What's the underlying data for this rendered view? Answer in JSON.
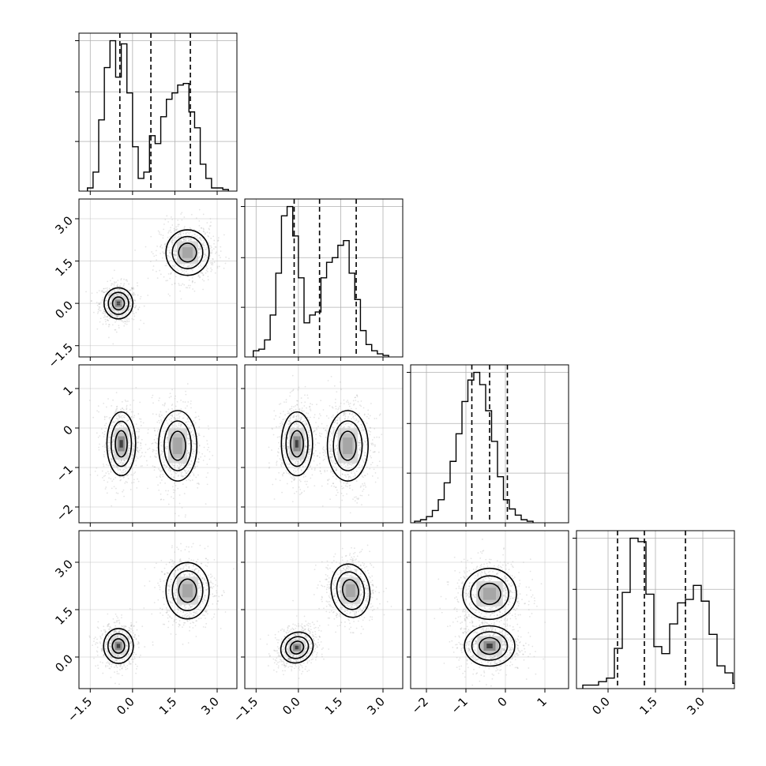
{
  "chart_data": {
    "type": "corner",
    "grid": true,
    "parameters": [
      {
        "ticks": [
          -1.5,
          0.0,
          1.5,
          3.0
        ],
        "tick_labels": [
          "−1.5",
          "0.0",
          "1.5",
          "3.0"
        ],
        "range": [
          -1.9,
          3.7
        ]
      },
      {
        "ticks": [
          -1.5,
          0.0,
          1.5,
          3.0
        ],
        "tick_labels": [
          "−1.5",
          "0.0",
          "1.5",
          "3.0"
        ],
        "range": [
          -1.9,
          3.7
        ]
      },
      {
        "ticks": [
          -2,
          -1,
          0,
          1
        ],
        "tick_labels": [
          "−2",
          "−1",
          "0",
          "1"
        ],
        "range": [
          -2.4,
          1.6
        ]
      },
      {
        "ticks": [
          0.0,
          1.5,
          3.0
        ],
        "tick_labels": [
          "0.0",
          "1.5",
          "3.0"
        ],
        "range": [
          -1.0,
          4.0
        ]
      }
    ],
    "histograms": [
      {
        "param": 0,
        "quantiles": [
          -0.45,
          0.65,
          2.05
        ],
        "bin_start": -1.6,
        "bin_width": 0.2,
        "counts": [
          0.02,
          0.12,
          0.45,
          0.78,
          0.95,
          0.72,
          0.93,
          0.62,
          0.28,
          0.08,
          0.12,
          0.35,
          0.3,
          0.47,
          0.58,
          0.62,
          0.67,
          0.68,
          0.5,
          0.4,
          0.17,
          0.08,
          0.02,
          0.02,
          0.01
        ]
      },
      {
        "param": 1,
        "quantiles": [
          -0.15,
          0.75,
          2.05
        ],
        "bin_start": -1.6,
        "bin_width": 0.2,
        "counts": [
          0.04,
          0.05,
          0.11,
          0.27,
          0.54,
          0.91,
          0.97,
          0.78,
          0.51,
          0.22,
          0.27,
          0.29,
          0.51,
          0.61,
          0.64,
          0.72,
          0.75,
          0.54,
          0.37,
          0.17,
          0.08,
          0.04,
          0.02,
          0.01
        ]
      },
      {
        "param": 2,
        "quantiles": [
          -0.85,
          -0.4,
          0.05
        ],
        "bin_start": -2.3,
        "bin_width": 0.15,
        "counts": [
          0.01,
          0.02,
          0.04,
          0.08,
          0.15,
          0.26,
          0.4,
          0.58,
          0.79,
          0.93,
          0.98,
          0.9,
          0.73,
          0.53,
          0.3,
          0.15,
          0.09,
          0.05,
          0.02,
          0.01
        ]
      },
      {
        "param": 3,
        "quantiles": [
          0.3,
          1.15,
          2.45
        ],
        "bin_start": -0.8,
        "bin_width": 0.25,
        "counts": [
          0.02,
          0.02,
          0.04,
          0.06,
          0.23,
          0.55,
          0.86,
          0.84,
          0.54,
          0.24,
          0.2,
          0.37,
          0.49,
          0.51,
          0.59,
          0.5,
          0.31,
          0.13,
          0.09,
          0.03,
          0.02
        ]
      }
    ],
    "pairs": [
      {
        "x": 0,
        "y": 1,
        "clusters": [
          {
            "cx": -0.5,
            "cy": 0.0,
            "rx": 0.6,
            "ry": 0.65,
            "rot": 0,
            "tilt": 0
          },
          {
            "cx": 1.95,
            "cy": 1.8,
            "rx": 0.9,
            "ry": 0.95,
            "rot": 0,
            "tilt": 0
          }
        ]
      },
      {
        "x": 0,
        "y": 2,
        "clusters": [
          {
            "cx": -0.4,
            "cy": -0.4,
            "rx": 0.6,
            "ry": 0.95,
            "rot": 0,
            "tilt": 0
          },
          {
            "cx": 1.6,
            "cy": -0.45,
            "rx": 0.8,
            "ry": 1.05,
            "rot": 0,
            "tilt": 0
          }
        ]
      },
      {
        "x": 1,
        "y": 2,
        "clusters": [
          {
            "cx": -0.05,
            "cy": -0.4,
            "rx": 0.65,
            "ry": 0.95,
            "rot": 0,
            "tilt": 0
          },
          {
            "cx": 1.75,
            "cy": -0.45,
            "rx": 0.85,
            "ry": 1.05,
            "rot": 0,
            "tilt": 0
          }
        ]
      },
      {
        "x": 0,
        "y": 3,
        "clusters": [
          {
            "cx": -0.5,
            "cy": 0.35,
            "rx": 0.62,
            "ry": 0.65,
            "rot": 0,
            "tilt": 0
          },
          {
            "cx": 1.95,
            "cy": 2.1,
            "rx": 0.9,
            "ry": 1.05,
            "rot": 0,
            "tilt": 0
          }
        ]
      },
      {
        "x": 1,
        "y": 3,
        "clusters": [
          {
            "cx": -0.05,
            "cy": 0.3,
            "rx": 0.7,
            "ry": 0.55,
            "rot": 35,
            "tilt": 0
          },
          {
            "cx": 1.85,
            "cy": 2.1,
            "rx": 0.8,
            "ry": 1.0,
            "rot": 10,
            "tilt": 0
          }
        ]
      },
      {
        "x": 2,
        "y": 3,
        "clusters": [
          {
            "cx": -0.4,
            "cy": 0.35,
            "rx": 0.75,
            "ry": 0.75,
            "rot": 0,
            "tilt": 0
          },
          {
            "cx": -0.4,
            "cy": 2.0,
            "rx": 0.8,
            "ry": 0.95,
            "rot": 0,
            "tilt": 0
          }
        ]
      }
    ],
    "contour_levels": [
      0.35,
      0.6,
      0.85
    ],
    "colors": {
      "points": "#9e9e9e",
      "lines": "#000000",
      "grid": "#b0b0b0"
    }
  }
}
